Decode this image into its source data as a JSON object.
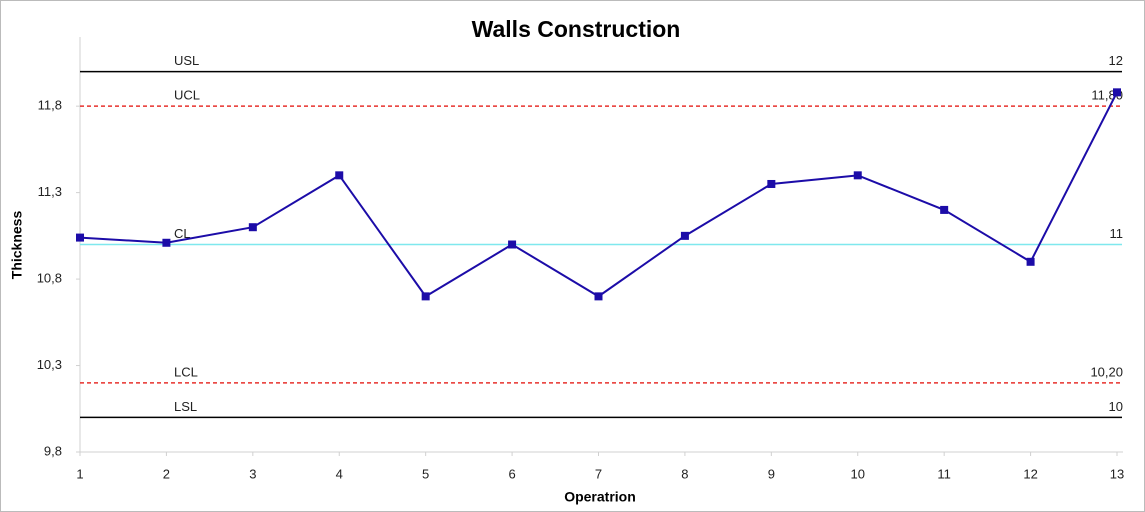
{
  "chart_data": {
    "type": "line",
    "title": "Walls Construction",
    "x_label": "Operatrion",
    "y_label": "Thickness",
    "x": [
      1,
      2,
      3,
      4,
      5,
      6,
      7,
      8,
      9,
      10,
      11,
      12,
      13
    ],
    "series": [
      {
        "color": "#1c0ca8",
        "values": [
          11.04,
          11.01,
          11.1,
          11.4,
          10.7,
          11.0,
          10.7,
          11.05,
          11.35,
          11.4,
          11.2,
          10.9,
          11.88
        ]
      }
    ],
    "xlim": [
      1,
      13
    ],
    "xticks": [
      1,
      2,
      3,
      4,
      5,
      6,
      7,
      8,
      9,
      10,
      11,
      12,
      13
    ],
    "ylim": [
      9.8,
      12.2
    ],
    "yticks": [
      {
        "value": 9.8,
        "label": "9,8"
      },
      {
        "value": 10.3,
        "label": "10,3"
      },
      {
        "value": 10.8,
        "label": "10,8"
      },
      {
        "value": 11.3,
        "label": "11,3"
      },
      {
        "value": 11.8,
        "label": "11,8"
      }
    ],
    "reference_lines": [
      {
        "name": "USL",
        "value": 12,
        "color": "#000000",
        "dashed": false
      },
      {
        "name": "UCL",
        "value": 11.8,
        "value_label": "11,80",
        "color": "#e8302c",
        "dashed": true
      },
      {
        "name": "CL",
        "value": 11,
        "color": "#7fe8ee",
        "dashed": false
      },
      {
        "name": "LCL",
        "value": 10.2,
        "value_label": "10,20",
        "color": "#e8302c",
        "dashed": true
      },
      {
        "name": "LSL",
        "value": 10,
        "color": "#000000",
        "dashed": false
      }
    ]
  }
}
